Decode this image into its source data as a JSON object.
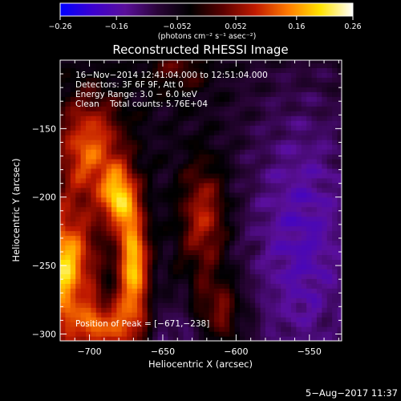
{
  "chart_data": {
    "type": "heatmap",
    "title": "Reconstructed RHESSI Image",
    "xlabel": "Heliocentric X (arcsec)",
    "ylabel": "Heliocentric Y (arcsec)",
    "xlim": [
      -720,
      -528
    ],
    "ylim": [
      -305,
      -100
    ],
    "xticks": [
      -700,
      -650,
      -600,
      -550
    ],
    "yticks": [
      -300,
      -250,
      -200,
      -150
    ],
    "xtick_labels": [
      "−700",
      "−650",
      "−600",
      "−550"
    ],
    "ytick_labels": [
      "−300",
      "−250",
      "−200",
      "−150"
    ],
    "grid": false,
    "colorbar": {
      "min": -0.26,
      "max": 0.26,
      "colormap": [
        "#0000ff",
        "#3c00d0",
        "#5a0f9a",
        "#2a0438",
        "#000000",
        "#5a0000",
        "#c01a00",
        "#ff7a00",
        "#ffe300",
        "#ffffff"
      ],
      "ticks": [
        -0.26,
        -0.16,
        -0.052,
        0.052,
        0.16,
        0.26
      ],
      "tick_labels": [
        "−0.26",
        "−0.16",
        "−0.052",
        "0.052",
        "0.16",
        "0.26"
      ],
      "units": "(photons cm⁻² s⁻¹ asec⁻²)"
    },
    "annotations": {
      "time_range": "16−Nov−2014 12:41:04.000 to 12:51:04.000",
      "detectors": "Detectors: 3F 6F 9F, Att 0",
      "energy_range": "Energy Range: 3.0 − 6.0 keV",
      "clean_label": "Clean",
      "total_counts": "Total counts: 5.76E+04",
      "peak_position": "Position of Peak = [−671,−238]"
    },
    "peak": {
      "x": -671,
      "y": -238
    },
    "sources": [
      {
        "x": -720,
        "y": -250,
        "amp": 0.26,
        "sx": 16,
        "sy": 28
      },
      {
        "x": -670,
        "y": -250,
        "amp": 0.25,
        "sx": 7,
        "sy": 30
      },
      {
        "x": -680,
        "y": -200,
        "amp": 0.21,
        "sx": 8,
        "sy": 16
      },
      {
        "x": -700,
        "y": -165,
        "amp": 0.18,
        "sx": 16,
        "sy": 28
      },
      {
        "x": -690,
        "y": -295,
        "amp": 0.17,
        "sx": 20,
        "sy": 14
      },
      {
        "x": -622,
        "y": -215,
        "amp": 0.14,
        "sx": 11,
        "sy": 28
      },
      {
        "x": -612,
        "y": -285,
        "amp": 0.12,
        "sx": 12,
        "sy": 18
      },
      {
        "x": -640,
        "y": -105,
        "amp": 0.07,
        "sx": 16,
        "sy": 14
      },
      {
        "x": -555,
        "y": -230,
        "amp": -0.11,
        "sx": 28,
        "sy": 75
      },
      {
        "x": -640,
        "y": -300,
        "amp": -0.07,
        "sx": 22,
        "sy": 18
      }
    ],
    "footer_date": "5−Aug−2017 11:37"
  }
}
